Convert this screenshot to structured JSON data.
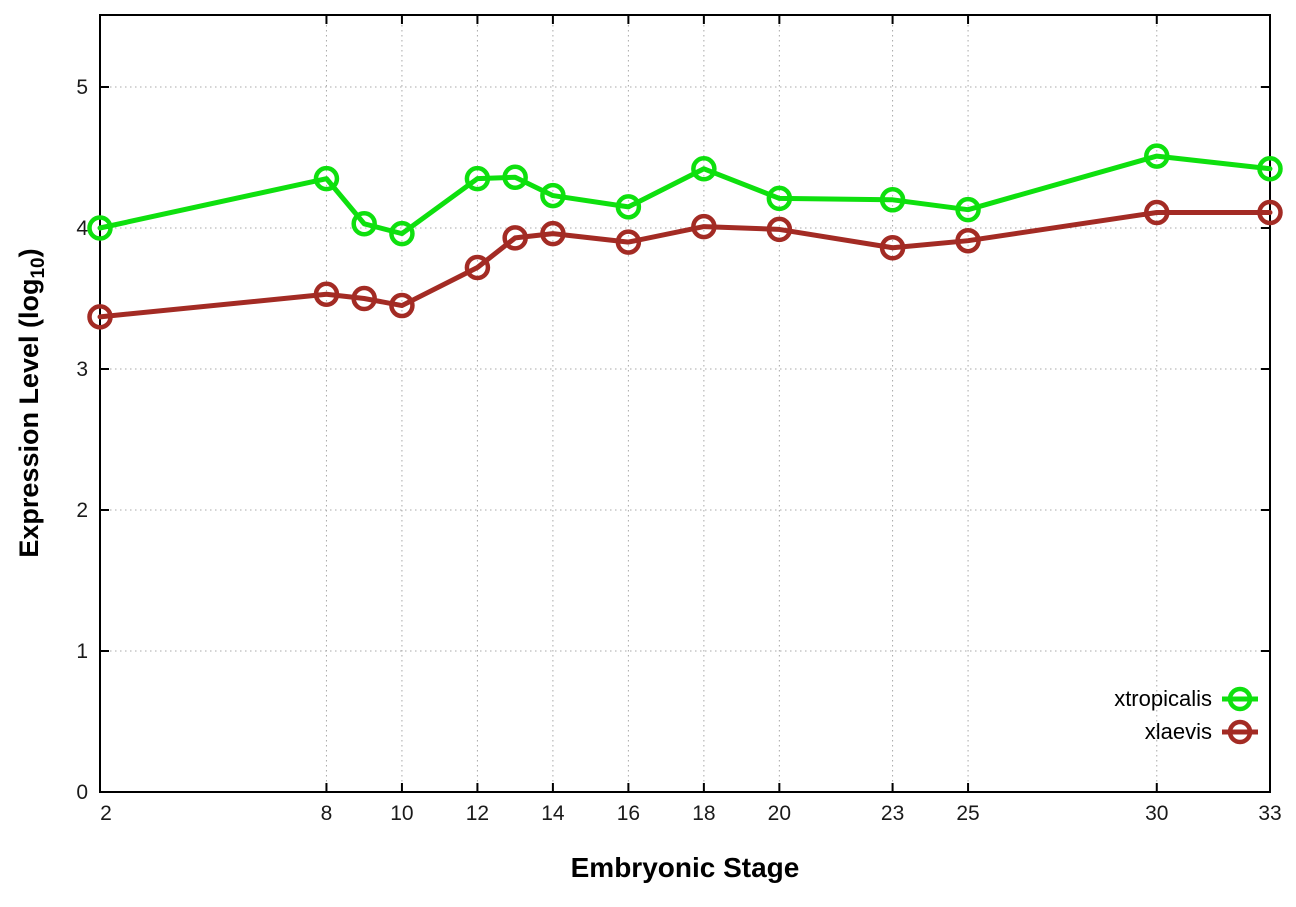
{
  "chart_data": {
    "type": "line",
    "title": "",
    "xlabel": "Embryonic Stage",
    "ylabel": "Expression Level (log10)",
    "ylabel_parts": {
      "prefix": "Expression Level (log",
      "sub": "10",
      "suffix": ")"
    },
    "x": [
      2,
      8,
      9,
      10,
      12,
      13,
      14,
      16,
      18,
      20,
      23,
      25,
      30,
      33
    ],
    "xticks": [
      2,
      8,
      10,
      12,
      14,
      16,
      18,
      20,
      23,
      25,
      30,
      33
    ],
    "yticks": [
      0,
      1,
      2,
      3,
      4,
      5
    ],
    "xlim": [
      2,
      33
    ],
    "ylim": [
      0,
      5.5
    ],
    "grid": "dotted",
    "legend_position": "inside-bottom-right",
    "marker": "open-circle",
    "series": [
      {
        "name": "xtropicalis",
        "color": "#0ee00e",
        "values": [
          4.0,
          4.35,
          4.03,
          3.96,
          4.35,
          4.36,
          4.23,
          4.15,
          4.42,
          4.21,
          4.2,
          4.13,
          4.51,
          4.42
        ]
      },
      {
        "name": "xlaevis",
        "color": "#a32b24",
        "values": [
          3.37,
          3.53,
          3.5,
          3.45,
          3.72,
          3.93,
          3.96,
          3.9,
          4.01,
          3.99,
          3.86,
          3.91,
          4.11,
          4.11
        ]
      }
    ],
    "colors": {
      "border": "#000000",
      "grid": "#a8a8a8",
      "tick_label": "#1a1a1a",
      "background": "#ffffff"
    }
  }
}
